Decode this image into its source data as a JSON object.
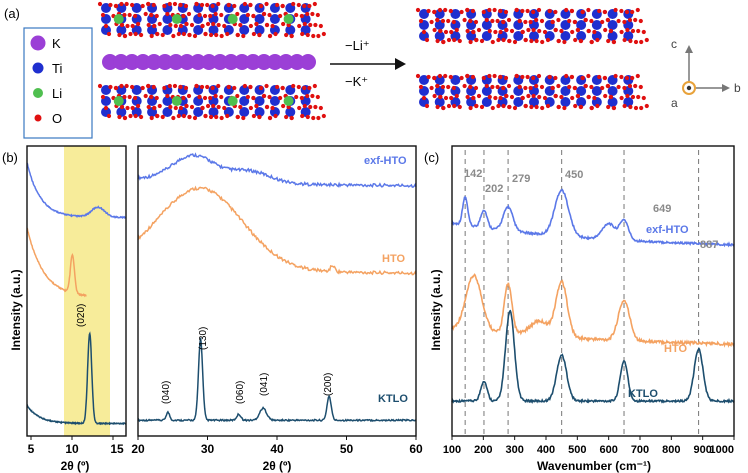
{
  "panel_a": {
    "label": "(a)",
    "legend": [
      {
        "symbol": "K",
        "color": "#9b3fd6"
      },
      {
        "symbol": "Ti",
        "color": "#1f2fcf"
      },
      {
        "symbol": "Li",
        "color": "#4fbf4f"
      },
      {
        "symbol": "O",
        "color": "#e01010"
      }
    ],
    "arrow_top": "−Li⁺",
    "arrow_bottom": "−K⁺",
    "axes": {
      "c": "c",
      "a": "a",
      "b": "b"
    }
  },
  "panel_b": {
    "label": "(b)",
    "ylabel": "Intensity (a.u.)",
    "xlabel": "2θ (º)",
    "left_ticks": [
      "5",
      "10",
      "15"
    ],
    "right_ticks": [
      "20",
      "30",
      "40",
      "50",
      "60"
    ],
    "peak_labels": [
      "(020)",
      "(040)",
      "(130)",
      "(060)",
      "(041)",
      "(200)"
    ],
    "curve_labels": {
      "exf": "exf-HTO",
      "hto": "HTO",
      "ktlo": "KTLO"
    },
    "colors": {
      "exf": "#5b78e8",
      "hto": "#f4a261",
      "ktlo": "#1d4e6e",
      "highlight": "#f7ec9a"
    }
  },
  "panel_c": {
    "label": "(c)",
    "ylabel": "Intensity (a.u.)",
    "xlabel": "Wavenumber (cm⁻¹)",
    "ticks": [
      "100",
      "200",
      "300",
      "400",
      "500",
      "600",
      "700",
      "800",
      "900",
      "1000"
    ],
    "peaks": [
      "142",
      "202",
      "279",
      "450",
      "649",
      "887"
    ],
    "curve_labels": {
      "exf": "exf-HTO",
      "hto": "HTO",
      "ktlo": "KTLO"
    }
  }
}
